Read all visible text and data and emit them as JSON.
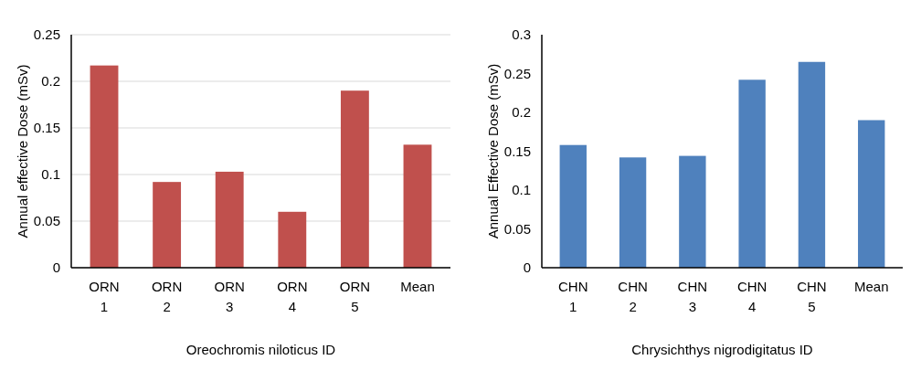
{
  "chart_data": [
    {
      "type": "bar",
      "xlabel": "Oreochromis niloticus  ID",
      "ylabel": "Annual effective Dose (mSv)",
      "categories": [
        "ORN 1",
        "ORN 2",
        "ORN 3",
        "ORN 4",
        "ORN 5",
        "Mean"
      ],
      "values": [
        0.217,
        0.092,
        0.103,
        0.06,
        0.19,
        0.132
      ],
      "color": "#c0504d",
      "ylim": [
        0,
        0.25
      ],
      "yticks": [
        0,
        0.05,
        0.1,
        0.15,
        0.2,
        0.25
      ],
      "grid": "y"
    },
    {
      "type": "bar",
      "xlabel": "Chrysichthys nigrodigitatus ID",
      "ylabel": "Annual Effective Dose (mSv)",
      "categories": [
        "CHN 1",
        "CHN 2",
        "CHN 3",
        "CHN 4",
        "CHN 5",
        "Mean"
      ],
      "values": [
        0.158,
        0.142,
        0.144,
        0.242,
        0.265,
        0.19
      ],
      "color": "#4f81bd",
      "ylim": [
        0,
        0.3
      ],
      "yticks": [
        0,
        0.05,
        0.1,
        0.15,
        0.2,
        0.25,
        0.3
      ]
    }
  ]
}
